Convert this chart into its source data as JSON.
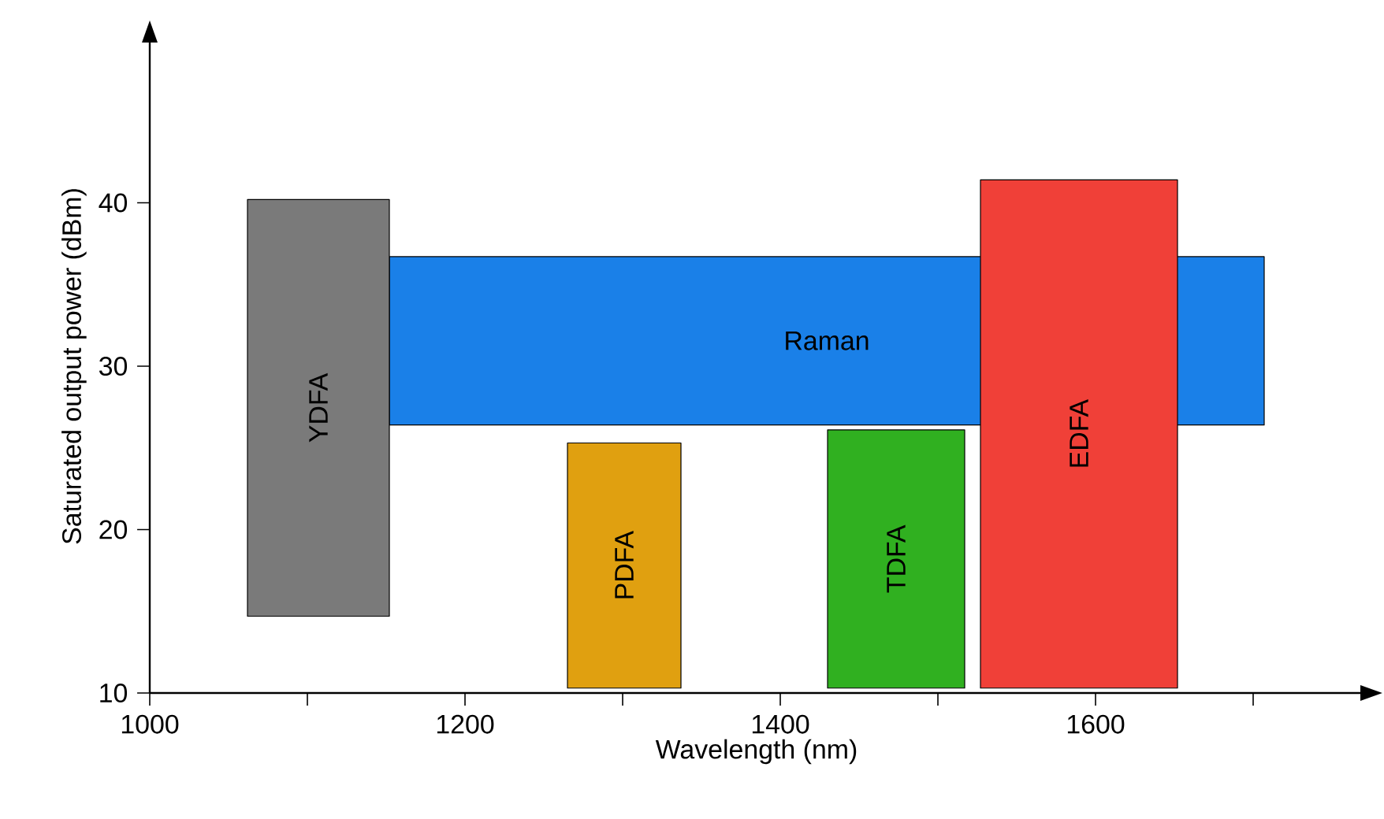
{
  "chart_data": {
    "type": "area",
    "xlabel": "Wavelength (nm)",
    "ylabel": "Saturated output power  (dBm)",
    "xlim": [
      1000,
      1770
    ],
    "ylim": [
      10,
      50
    ],
    "xticks": [
      1000,
      {
        "value": 1100,
        "label": null
      },
      1200,
      {
        "value": 1300,
        "label": null
      },
      1400,
      {
        "value": 1500,
        "label": null
      },
      1600,
      {
        "value": 1700,
        "label": null
      }
    ],
    "yticks": [
      10,
      20,
      30,
      40
    ],
    "grid": false,
    "series": [
      {
        "name": "Raman",
        "color": "#1a80e8",
        "x": [
          1152,
          1707,
          1707,
          1152
        ],
        "values": [
          26.4,
          26.4,
          36.7,
          36.7
        ]
      },
      {
        "name": "YDFA",
        "color": "#7a7a7a",
        "x": [
          1062,
          1152,
          1152,
          1062
        ],
        "values": [
          14.7,
          14.7,
          40.2,
          40.2
        ]
      },
      {
        "name": "PDFA",
        "color": "#e0a010",
        "x": [
          1265,
          1337,
          1337,
          1265
        ],
        "values": [
          10.3,
          10.3,
          25.3,
          25.3
        ]
      },
      {
        "name": "TDFA",
        "color": "#30b020",
        "x": [
          1430,
          1517,
          1517,
          1430
        ],
        "values": [
          10.3,
          10.3,
          26.1,
          26.1
        ]
      },
      {
        "name": "EDFA",
        "color": "#f04038",
        "x": [
          1527,
          1652,
          1652,
          1527
        ],
        "values": [
          10.3,
          10.3,
          41.4,
          41.4
        ]
      }
    ]
  }
}
